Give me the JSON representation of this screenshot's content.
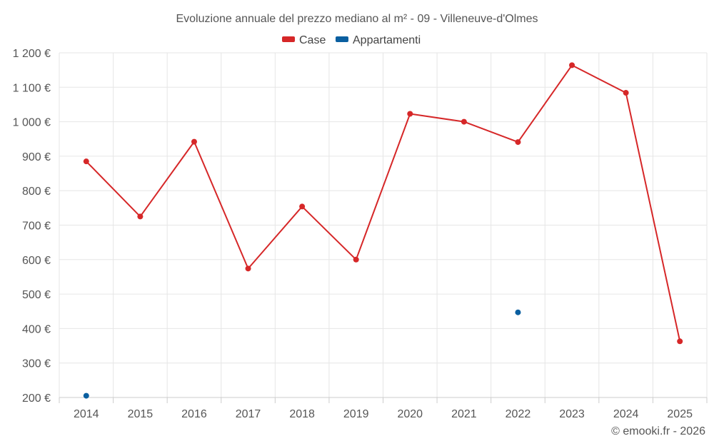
{
  "chart_data": {
    "type": "line",
    "title": "Evoluzione annuale del prezzo mediano al m² - 09 - Villeneuve-d'Olmes",
    "xlabel": "",
    "ylabel": "",
    "categories": [
      "2014",
      "2015",
      "2016",
      "2017",
      "2018",
      "2019",
      "2020",
      "2021",
      "2022",
      "2023",
      "2024",
      "2025"
    ],
    "ylim": [
      200,
      1200
    ],
    "yticks": [
      200,
      300,
      400,
      500,
      600,
      700,
      800,
      900,
      1000,
      1100,
      1200
    ],
    "ytick_labels": [
      "200 €",
      "300 €",
      "400 €",
      "500 €",
      "600 €",
      "700 €",
      "800 €",
      "900 €",
      "1 000 €",
      "1 100 €",
      "1 200 €"
    ],
    "grid": true,
    "legend_position": "top-center",
    "series": [
      {
        "name": "Case",
        "color": "#d62728",
        "values": [
          885,
          725,
          942,
          574,
          754,
          600,
          1023,
          1000,
          941,
          1164,
          1084,
          363
        ]
      },
      {
        "name": "Appartamenti",
        "color": "#0a5fa0",
        "values": [
          205,
          null,
          null,
          null,
          null,
          null,
          null,
          null,
          447,
          null,
          null,
          null
        ]
      }
    ]
  },
  "credit": "© emooki.fr - 2026"
}
